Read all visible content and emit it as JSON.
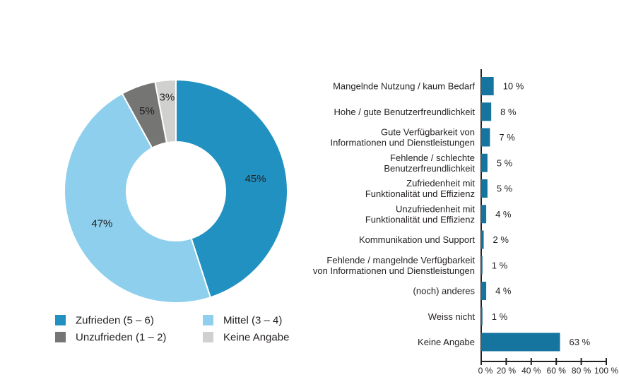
{
  "figure": {
    "background": "#ffffff",
    "text_color": "#231f20",
    "axis_color": "#231f20"
  },
  "chart_data": [
    {
      "type": "pie",
      "variant": "donut",
      "direction": "clockwise",
      "start_angle_deg": 0,
      "legend_position": "bottom-left",
      "slices": [
        {
          "label": "Zufrieden (5 – 6)",
          "value": 45,
          "display": "45%",
          "color": "#2191c1"
        },
        {
          "label": "Mittel (3 – 4)",
          "value": 47,
          "display": "47%",
          "color": "#8dcfec"
        },
        {
          "label": "Unzufrieden (1 – 2)",
          "value": 5,
          "display": "5%",
          "color": "#757574"
        },
        {
          "label": "Keine Angabe",
          "value": 3,
          "display": "3%",
          "color": "#d0d0ce"
        }
      ]
    },
    {
      "type": "bar",
      "orientation": "horizontal",
      "bar_color": "#16759f",
      "grid": false,
      "xlim": [
        0,
        100
      ],
      "x_ticks": [
        0,
        20,
        40,
        60,
        80,
        100
      ],
      "x_tick_labels": [
        "0 %",
        "20 %",
        "40 %",
        "60 %",
        "80 %",
        "100 %"
      ],
      "categories": [
        [
          "Mangelnde Nutzung / kaum Bedarf"
        ],
        [
          "Hohe / gute Benutzerfreundlichkeit"
        ],
        [
          "Gute Verfügbarkeit von",
          "Informationen und Dienstleistungen"
        ],
        [
          "Fehlende / schlechte",
          "Benutzerfreundlichkeit"
        ],
        [
          "Zufriedenheit mit",
          "Funktionalität und Effizienz"
        ],
        [
          "Unzufriedenheit mit",
          "Funktionalität und Effizienz"
        ],
        [
          "Kommunikation und Support"
        ],
        [
          "Fehlende / mangelnde Verfügbarkeit",
          "von Informationen und Dienstleistungen"
        ],
        [
          "(noch) anderes"
        ],
        [
          "Weiss nicht"
        ],
        [
          "Keine Angabe"
        ]
      ],
      "values": [
        10,
        8,
        7,
        5,
        5,
        4,
        2,
        1,
        4,
        1,
        63
      ],
      "value_labels": [
        "10 %",
        "8 %",
        "7 %",
        "5 %",
        "5 %",
        "4 %",
        "2 %",
        "1 %",
        "4 %",
        "1 %",
        "63 %"
      ]
    }
  ]
}
